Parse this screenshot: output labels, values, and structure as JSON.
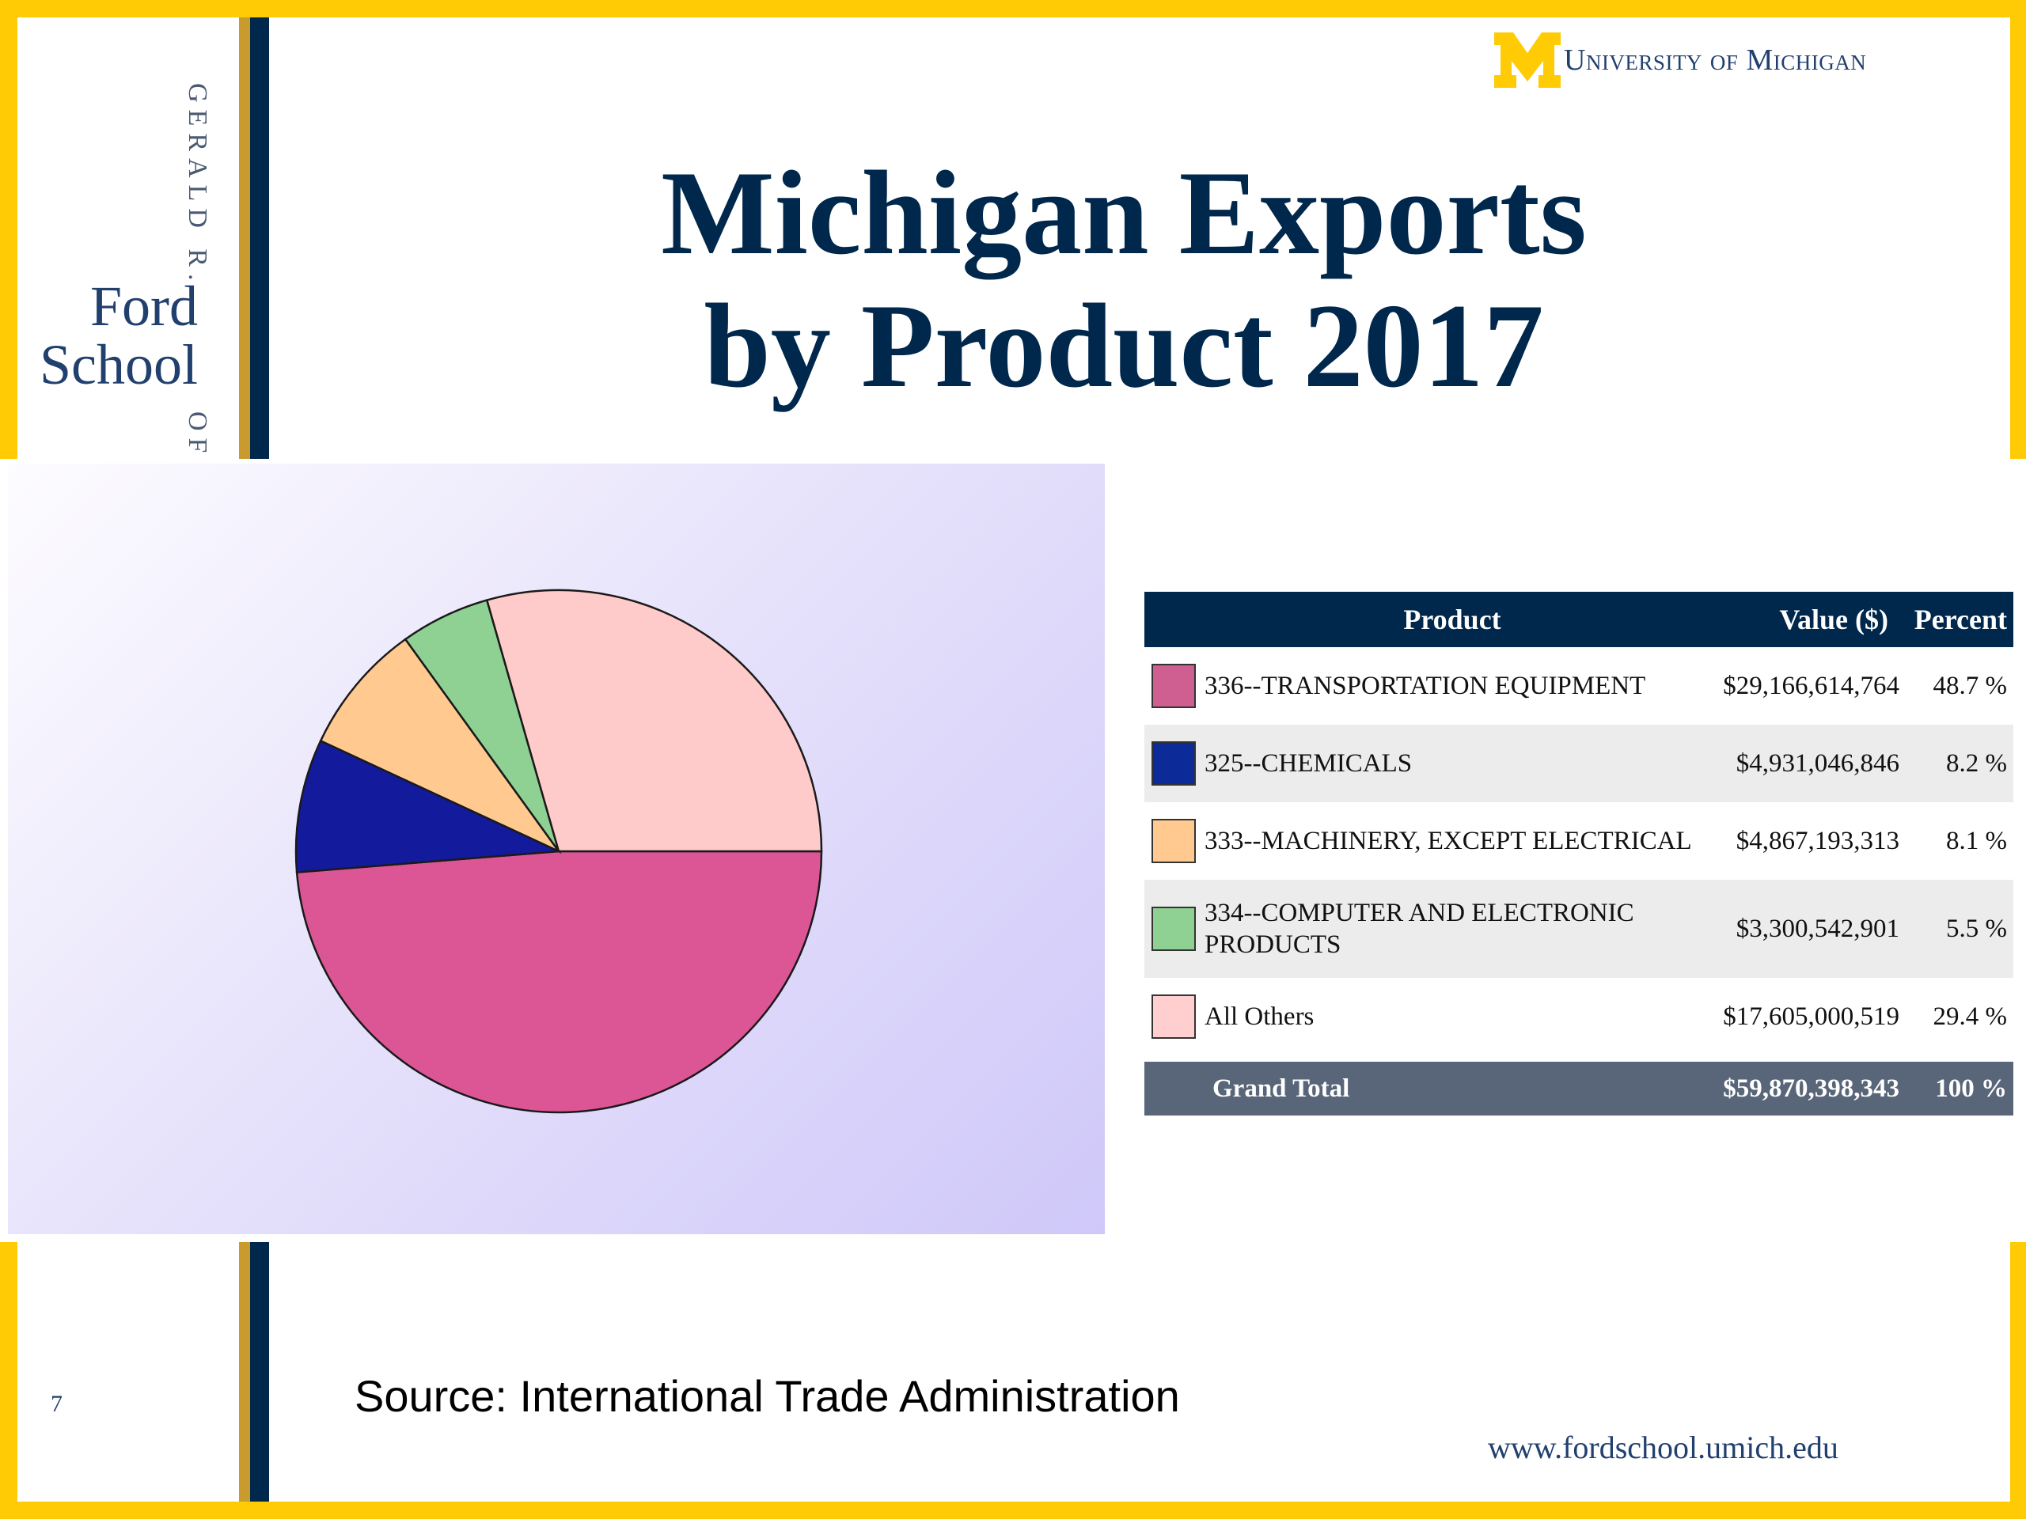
{
  "brand": {
    "sidebar_vertical_text": "GERALD R.",
    "sidebar_vertical_text_2": "OF",
    "school_name_line1": "Ford",
    "school_name_line2": "School",
    "university": "University of Michigan",
    "logo_letter": "M",
    "colors": {
      "maize": "#ffcb05",
      "navy": "#00274c",
      "gold_stripe": "#c99a2e"
    }
  },
  "slide": {
    "title_line1": "Michigan Exports",
    "title_line2": "by Product 2017",
    "page_number": "7",
    "source": "Source:  International Trade Administration",
    "url": "www.fordschool.umich.edu"
  },
  "table": {
    "headers": {
      "product": "Product",
      "value": "Value ($)",
      "percent": "Percent"
    },
    "total": {
      "label": "Grand Total",
      "value": "$59,870,398,343",
      "percent": "100 %"
    }
  },
  "chart_data": {
    "type": "pie",
    "categories": [
      "336--TRANSPORTATION EQUIPMENT",
      "325--CHEMICALS",
      "333--MACHINERY, EXCEPT ELECTRICAL",
      "334--COMPUTER AND ELECTRONIC PRODUCTS",
      "All Others"
    ],
    "values": [
      29166614764,
      4931046846,
      4867193313,
      3300542901,
      17605000519
    ],
    "value_labels": [
      "$29,166,614,764",
      "$4,931,046,846",
      "$4,867,193,313",
      "$3,300,542,901",
      "$17,605,000,519"
    ],
    "percent_labels": [
      "48.7 %",
      "8.2 %",
      "8.1 %",
      "5.5 %",
      "29.4 %"
    ],
    "colors": [
      "#dc5696",
      "#131a9c",
      "#ffc98f",
      "#8fd193",
      "#ffcaca"
    ],
    "swatch_colors": [
      "#cf5e91",
      "#0c2a98",
      "#ffc98f",
      "#8fd193",
      "#ffcfcf"
    ],
    "total": 59870398343,
    "start_angle_deg": 0,
    "direction": "clockwise"
  }
}
